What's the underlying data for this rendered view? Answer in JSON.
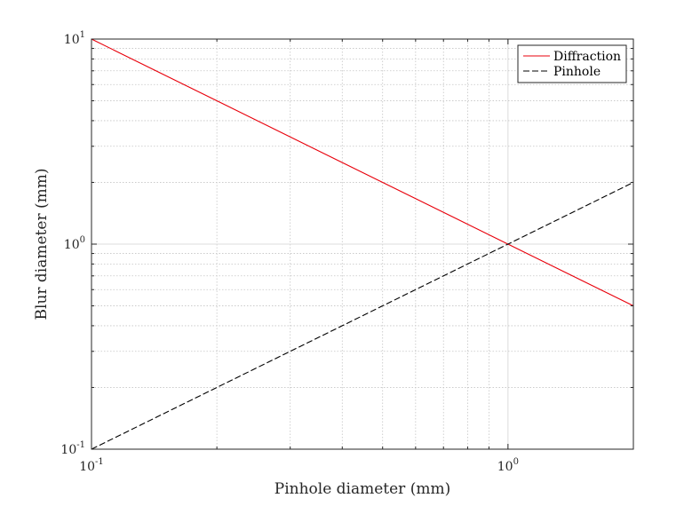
{
  "chart_data": {
    "type": "line",
    "xlabel": "Pinhole diameter (mm)",
    "ylabel": "Blur diameter (mm)",
    "xscale": "log",
    "yscale": "log",
    "xlim": [
      0.1,
      2
    ],
    "ylim": [
      0.1,
      10
    ],
    "x_ticks": [
      {
        "value": 0.1,
        "base": "10",
        "exp": "-1"
      },
      {
        "value": 1,
        "base": "10",
        "exp": "0"
      }
    ],
    "y_ticks": [
      {
        "value": 0.1,
        "base": "10",
        "exp": "-1"
      },
      {
        "value": 1,
        "base": "10",
        "exp": "0"
      },
      {
        "value": 10,
        "base": "10",
        "exp": "1"
      }
    ],
    "grid": true,
    "legend_position": "top-right",
    "series": [
      {
        "name": "Diffraction",
        "color": "#e8000b",
        "style": "solid",
        "x": [
          0.1,
          2
        ],
        "y": [
          10,
          0.5
        ]
      },
      {
        "name": "Pinhole",
        "color": "#000000",
        "style": "dashed",
        "x": [
          0.1,
          2
        ],
        "y": [
          0.1,
          2
        ]
      }
    ]
  }
}
